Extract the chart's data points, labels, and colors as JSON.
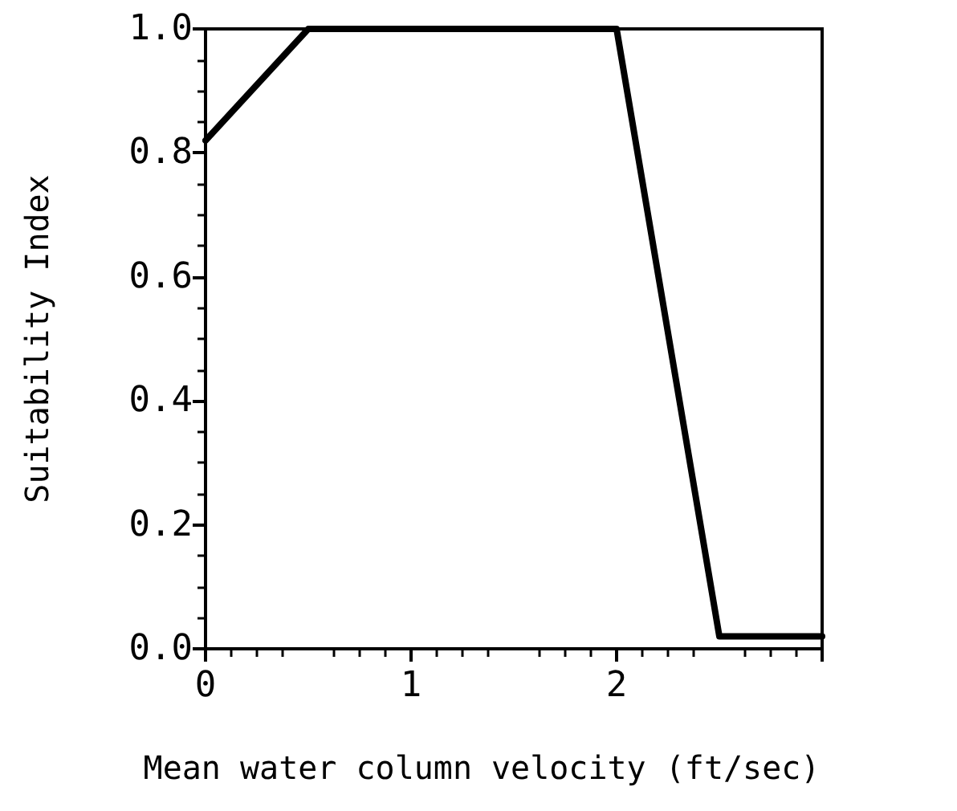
{
  "chart_data": {
    "type": "line",
    "xlabel": "Mean water column velocity (ft/sec)",
    "ylabel": "Suitability Index",
    "x": [
      0,
      0.5,
      2,
      2.5,
      3
    ],
    "series": [
      {
        "color": "#000000",
        "values": [
          0.82,
          1.0,
          1.0,
          0.02,
          0.02
        ]
      }
    ],
    "xlim": [
      0,
      3
    ],
    "ylim": [
      0,
      1
    ],
    "xticks": [
      0,
      1,
      2,
      {
        "value": 3,
        "label": null
      }
    ],
    "yticks": [
      {
        "value": 0,
        "label": "0.0"
      },
      {
        "value": 0.2,
        "label": "0.2"
      },
      {
        "value": 0.4,
        "label": "0.4"
      },
      {
        "value": 0.6,
        "label": "0.6"
      },
      {
        "value": 0.8,
        "label": "0.8"
      },
      {
        "value": 1,
        "label": "1.0"
      }
    ],
    "grid": false,
    "marker": "none",
    "line_style": "solid"
  }
}
